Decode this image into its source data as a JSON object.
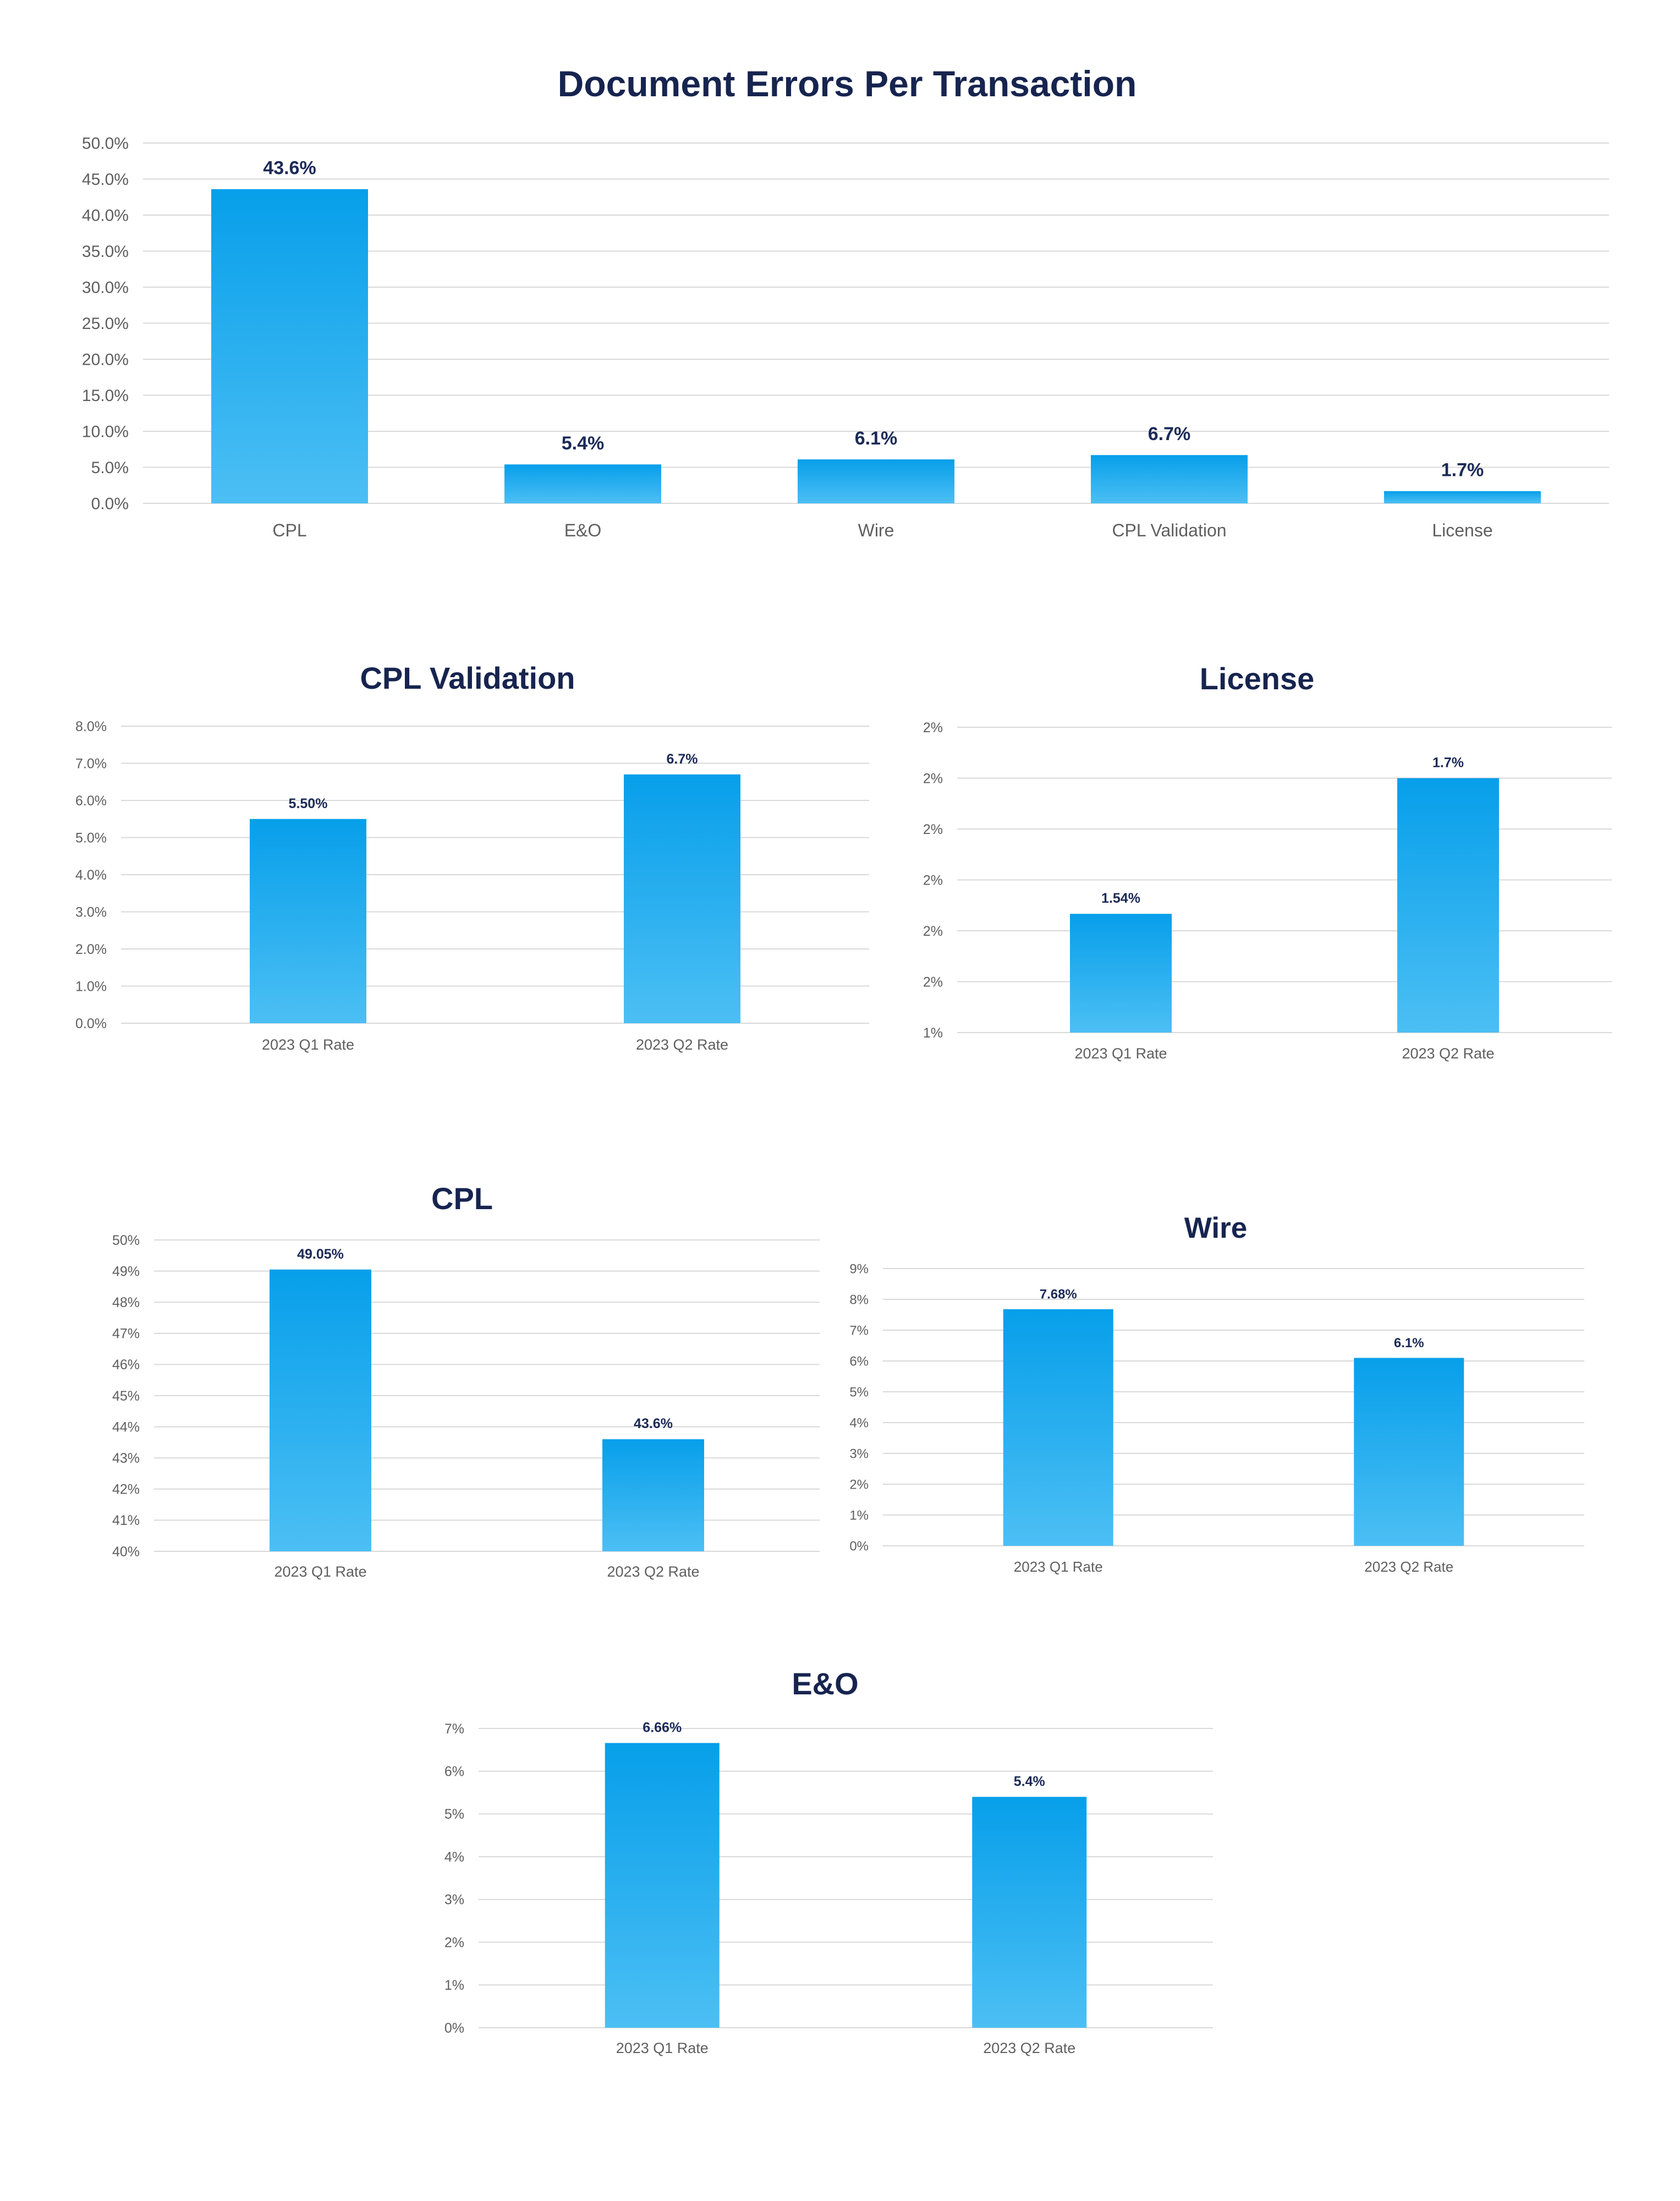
{
  "colors": {
    "bar_top": "#079fea",
    "bar_bottom": "#4cbff4",
    "title": "#16244f",
    "data_label": "#1b2a57",
    "tick": "#5f5f5f",
    "grid": "#d9d9d9"
  },
  "chart_data": [
    {
      "id": "main",
      "type": "bar",
      "title": "Document Errors Per Transaction",
      "categories": [
        "CPL",
        "E&O",
        "Wire",
        "CPL Validation",
        "License"
      ],
      "values": [
        43.6,
        5.4,
        6.1,
        6.7,
        1.7
      ],
      "value_labels": [
        "43.6%",
        "5.4%",
        "6.1%",
        "6.7%",
        "1.7%"
      ],
      "yticks": [
        "50.0%",
        "45.0%",
        "40.0%",
        "35.0%",
        "30.0%",
        "25.0%",
        "20.0%",
        "15.0%",
        "10.0%",
        "5.0%",
        "0.0%"
      ],
      "ylim": [
        0,
        50
      ],
      "grid": true
    },
    {
      "id": "cpl_validation",
      "type": "bar",
      "title": "CPL Validation",
      "categories": [
        "2023 Q1 Rate",
        "2023 Q2 Rate"
      ],
      "values": [
        5.5,
        6.7
      ],
      "value_labels": [
        "5.50%",
        "6.7%"
      ],
      "yticks": [
        "8.0%",
        "7.0%",
        "6.0%",
        "5.0%",
        "4.0%",
        "3.0%",
        "2.0%",
        "1.0%",
        "0.0%"
      ],
      "ylim": [
        0,
        8
      ],
      "grid": true
    },
    {
      "id": "license",
      "type": "bar",
      "title": "License",
      "categories": [
        "2023 Q1 Rate",
        "2023 Q2 Rate"
      ],
      "values": [
        1.54,
        1.7
      ],
      "value_labels": [
        "1.54%",
        "1.7%"
      ],
      "yticks": [
        "2%",
        "2%",
        "2%",
        "2%",
        "2%",
        "2%",
        "1%"
      ],
      "ylim": [
        1.4,
        1.76
      ],
      "grid": true
    },
    {
      "id": "cpl",
      "type": "bar",
      "title": "CPL",
      "categories": [
        "2023 Q1 Rate",
        "2023 Q2 Rate"
      ],
      "values": [
        49.05,
        43.6
      ],
      "value_labels": [
        "49.05%",
        "43.6%"
      ],
      "yticks": [
        "50%",
        "49%",
        "48%",
        "47%",
        "46%",
        "45%",
        "44%",
        "43%",
        "42%",
        "41%",
        "40%"
      ],
      "ylim": [
        40,
        50
      ],
      "grid": true
    },
    {
      "id": "wire",
      "type": "bar",
      "title": "Wire",
      "categories": [
        "2023 Q1 Rate",
        "2023 Q2 Rate"
      ],
      "values": [
        7.68,
        6.1
      ],
      "value_labels": [
        "7.68%",
        "6.1%"
      ],
      "yticks": [
        "9%",
        "8%",
        "7%",
        "6%",
        "5%",
        "4%",
        "3%",
        "2%",
        "1%",
        "0%"
      ],
      "ylim": [
        0,
        9
      ],
      "grid": true
    },
    {
      "id": "eo",
      "type": "bar",
      "title": "E&O",
      "categories": [
        "2023 Q1 Rate",
        "2023 Q2 Rate"
      ],
      "values": [
        6.66,
        5.4
      ],
      "value_labels": [
        "6.66%",
        "5.4%"
      ],
      "yticks": [
        "7%",
        "6%",
        "5%",
        "4%",
        "3%",
        "2%",
        "1%",
        "0%"
      ],
      "ylim": [
        0,
        7
      ],
      "grid": true
    }
  ]
}
